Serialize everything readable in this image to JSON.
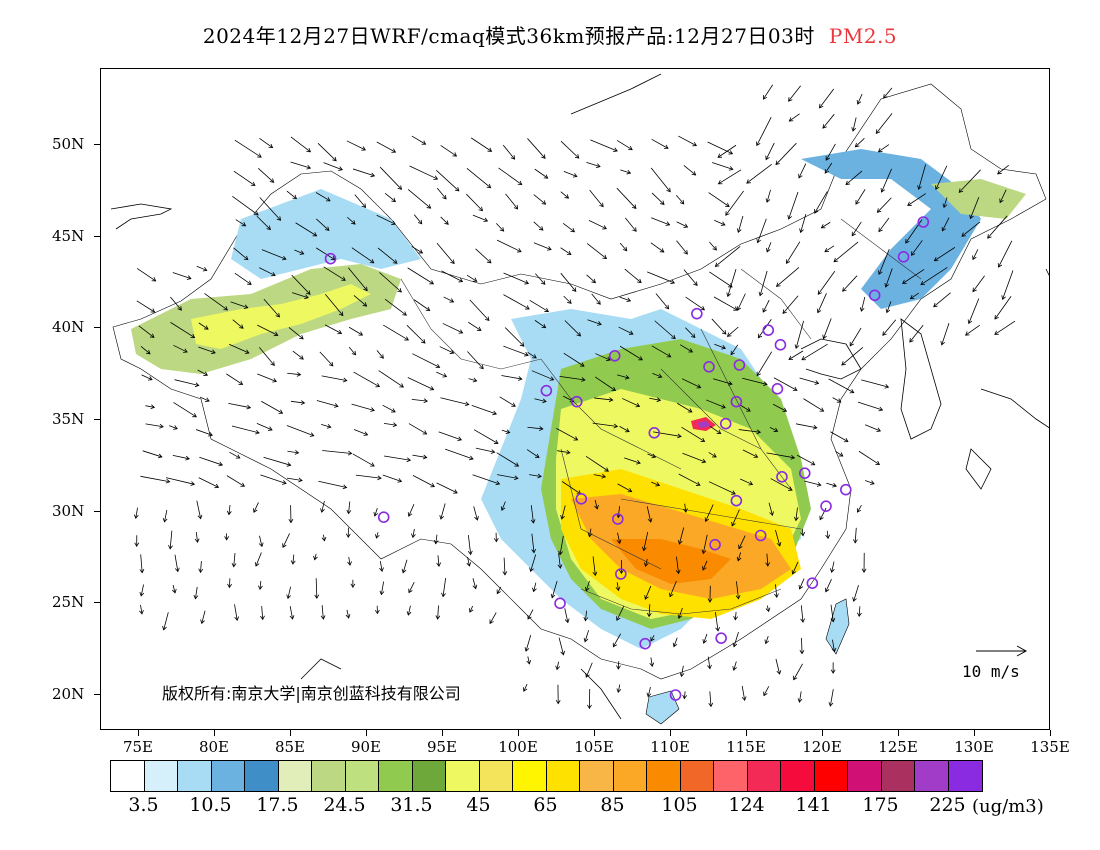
{
  "title": {
    "main": "2024年12月27日WRF/cmaq模式36km预报产品:12月27日03时",
    "product": "PM2.5",
    "product_color": "#e8383d"
  },
  "axes": {
    "x_ticks": [
      "75E",
      "80E",
      "85E",
      "90E",
      "95E",
      "100E",
      "105E",
      "110E",
      "115E",
      "120E",
      "125E",
      "130E",
      "135E"
    ],
    "y_ticks": [
      "50N",
      "45N",
      "40N",
      "35N",
      "30N",
      "25N",
      "20N"
    ]
  },
  "copyright": "版权所有:南京大学|南京创蓝科技有限公司",
  "vector_legend": "10 m/s",
  "colorbar": {
    "colors": [
      "#ffffff",
      "#d6f0fb",
      "#a8dcf4",
      "#6bb2e0",
      "#3f8ec7",
      "#e1eeb9",
      "#bcd882",
      "#bfe07e",
      "#90ca4f",
      "#6fa83a",
      "#eef962",
      "#f4e45c",
      "#fff500",
      "#ffe100",
      "#f8b646",
      "#fba826",
      "#fa8b00",
      "#f06728",
      "#ff636a",
      "#f22a55",
      "#f50b3c",
      "#ff0000",
      "#d01075",
      "#aa3060",
      "#a03cc8",
      "#8a2be2"
    ],
    "labels": [
      "3.5",
      "10.5",
      "17.5",
      "24.5",
      "31.5",
      "45",
      "65",
      "85",
      "105",
      "124",
      "141",
      "175",
      "225"
    ],
    "unit": "(ug/m3)"
  },
  "sites": [
    {
      "lon": 87.6,
      "lat": 43.8
    },
    {
      "lon": 91.1,
      "lat": 29.7
    },
    {
      "lon": 101.8,
      "lat": 36.6
    },
    {
      "lon": 103.8,
      "lat": 36.0
    },
    {
      "lon": 106.3,
      "lat": 38.5
    },
    {
      "lon": 111.7,
      "lat": 40.8
    },
    {
      "lon": 112.5,
      "lat": 37.9
    },
    {
      "lon": 114.5,
      "lat": 38.0
    },
    {
      "lon": 116.4,
      "lat": 39.9
    },
    {
      "lon": 117.2,
      "lat": 39.1
    },
    {
      "lon": 117.0,
      "lat": 36.7
    },
    {
      "lon": 113.6,
      "lat": 34.8
    },
    {
      "lon": 108.9,
      "lat": 34.3
    },
    {
      "lon": 104.1,
      "lat": 30.7
    },
    {
      "lon": 106.5,
      "lat": 29.6
    },
    {
      "lon": 106.7,
      "lat": 26.6
    },
    {
      "lon": 102.7,
      "lat": 25.0
    },
    {
      "lon": 108.3,
      "lat": 22.8
    },
    {
      "lon": 110.3,
      "lat": 20.0
    },
    {
      "lon": 113.3,
      "lat": 23.1
    },
    {
      "lon": 112.9,
      "lat": 28.2
    },
    {
      "lon": 114.3,
      "lat": 30.6
    },
    {
      "lon": 115.9,
      "lat": 28.7
    },
    {
      "lon": 117.3,
      "lat": 31.9
    },
    {
      "lon": 118.8,
      "lat": 32.1
    },
    {
      "lon": 120.2,
      "lat": 30.3
    },
    {
      "lon": 121.5,
      "lat": 31.2
    },
    {
      "lon": 119.3,
      "lat": 26.1
    },
    {
      "lon": 123.4,
      "lat": 41.8
    },
    {
      "lon": 125.3,
      "lat": 43.9
    },
    {
      "lon": 126.6,
      "lat": 45.8
    },
    {
      "lon": 114.3,
      "lat": 36.0
    }
  ]
}
